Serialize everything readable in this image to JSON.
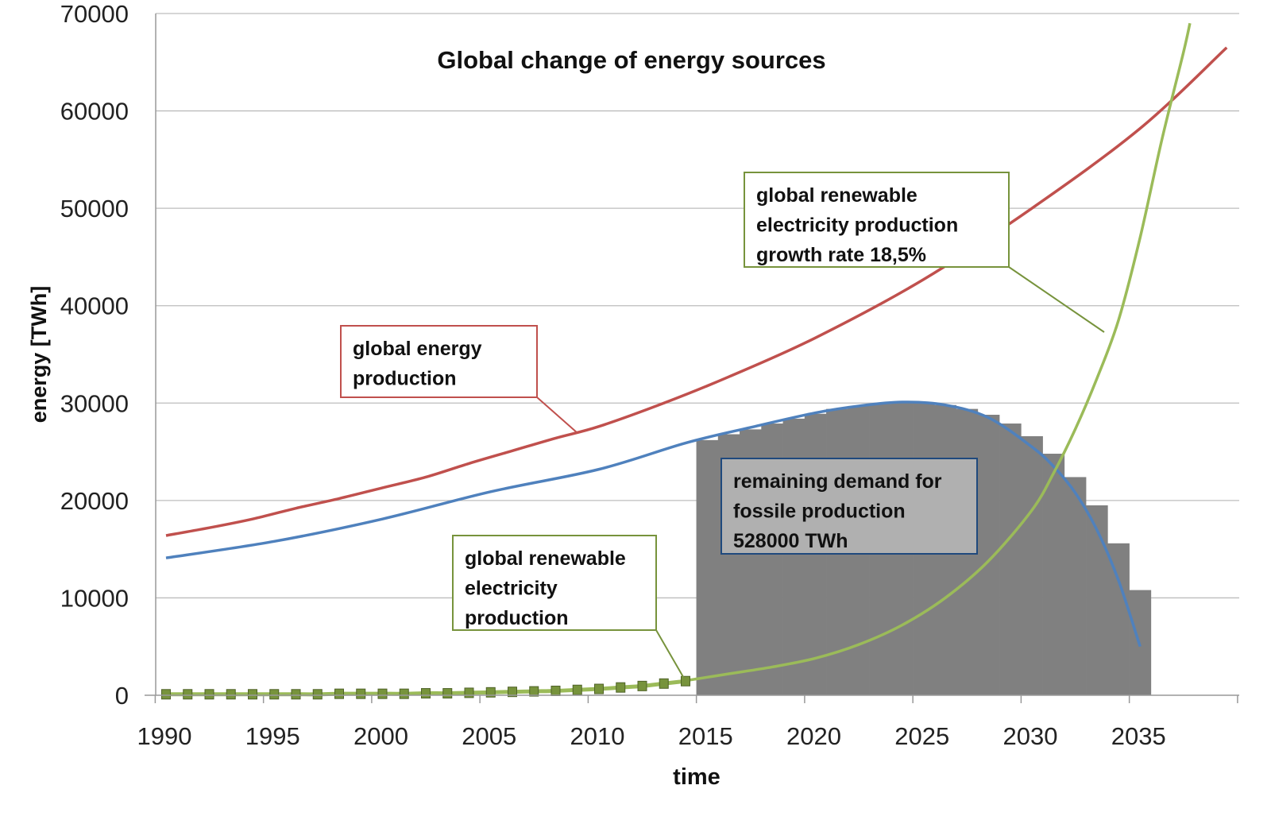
{
  "chart_data": {
    "type": "line",
    "title": "Global change of energy sources",
    "xlabel": "time",
    "ylabel": "energy [TWh]",
    "xlim": [
      1989.5,
      2039.6
    ],
    "ylim": [
      0,
      70000
    ],
    "x_ticks": [
      "1990",
      "1995",
      "2000",
      "2005",
      "2010",
      "2015",
      "2020",
      "2025",
      "2030",
      "2035"
    ],
    "y_ticks": [
      "0",
      "10000",
      "20000",
      "30000",
      "40000",
      "50000",
      "60000",
      "70000"
    ],
    "grid": true,
    "colors": {
      "red": "#c0504d",
      "blue": "#4f81bd",
      "green": "#9bbb59",
      "marker": "#77933c",
      "bars": "#808080",
      "box_fill": "#b0b0b0",
      "box_border": "#1f497d"
    },
    "series": [
      {
        "key": "energy",
        "type": "line",
        "color": "#c0504d",
        "x": [
          1990,
          1992,
          1994,
          1996,
          1998,
          2000,
          2002,
          2004,
          2006,
          2008,
          2010,
          2013,
          2016,
          2020,
          2025,
          2030,
          2035,
          2039
        ],
        "y": [
          16400,
          17200,
          18100,
          19200,
          20200,
          21300,
          22400,
          23800,
          25100,
          26400,
          27600,
          30000,
          32700,
          36700,
          42700,
          50000,
          58200,
          66500
        ]
      },
      {
        "key": "fossil_demand",
        "type": "line",
        "color": "#4f81bd",
        "x": [
          1990,
          1995,
          2000,
          2005,
          2010,
          2014,
          2017,
          2020,
          2022,
          2024,
          2026,
          2028,
          2030,
          2031,
          2032,
          2033,
          2034,
          2035
        ],
        "y": [
          14100,
          15800,
          18100,
          20900,
          23200,
          25900,
          27500,
          29000,
          29700,
          30100,
          29800,
          28500,
          25500,
          23500,
          20800,
          17000,
          11800,
          5000
        ]
      },
      {
        "key": "renewable",
        "type": "line",
        "color": "#9bbb59",
        "x": [
          2014,
          2016,
          2018,
          2020,
          2022,
          2024,
          2026,
          2028,
          2030,
          2031,
          2032,
          2033,
          2034,
          2035,
          2036,
          2037,
          2037.3
        ],
        "y": [
          1500,
          2200,
          2900,
          3800,
          5200,
          7200,
          10000,
          13800,
          19000,
          22800,
          27300,
          32500,
          38500,
          47000,
          57000,
          66000,
          69000
        ]
      },
      {
        "key": "renewable_measured",
        "type": "markers",
        "color": "#77933c",
        "x": [
          1990,
          1991,
          1992,
          1993,
          1994,
          1995,
          1996,
          1997,
          1998,
          1999,
          2000,
          2001,
          2002,
          2003,
          2004,
          2005,
          2006,
          2007,
          2008,
          2009,
          2010,
          2011,
          2012,
          2013,
          2014
        ],
        "y": [
          100,
          100,
          100,
          100,
          100,
          100,
          100,
          100,
          150,
          150,
          150,
          150,
          200,
          200,
          250,
          300,
          350,
          400,
          450,
          550,
          650,
          800,
          950,
          1200,
          1450
        ]
      },
      {
        "key": "remaining_fossil",
        "type": "bar",
        "color": "#808080",
        "x": [
          2015,
          2016,
          2017,
          2018,
          2019,
          2020,
          2021,
          2022,
          2023,
          2024,
          2025,
          2026,
          2027,
          2028,
          2029,
          2030,
          2031,
          2032,
          2033,
          2034,
          2035
        ],
        "y": [
          26200,
          26800,
          27300,
          27900,
          28400,
          28900,
          29400,
          29700,
          29900,
          30000,
          30000,
          29800,
          29400,
          28800,
          27900,
          26600,
          24800,
          22400,
          19500,
          15600,
          10800
        ]
      }
    ],
    "annotations": {
      "energy": [
        "global energy",
        "production"
      ],
      "renewable_growth": [
        "global renewable",
        "electricity production",
        "growth rate 18,5%"
      ],
      "renewable": [
        "global renewable",
        "electricity",
        "production"
      ],
      "fossil": [
        "remaining demand for",
        "fossile  production",
        "528000 TWh"
      ]
    }
  }
}
